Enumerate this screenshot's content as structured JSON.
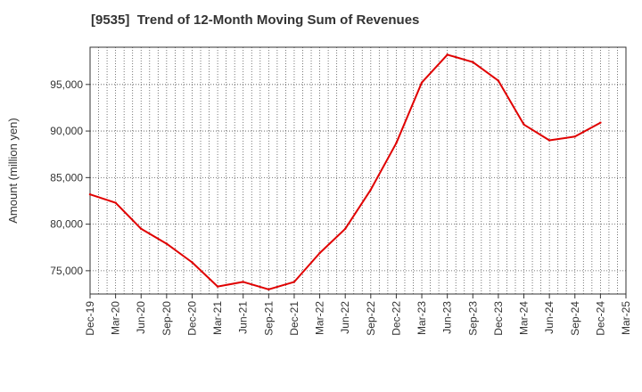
{
  "chart_data": {
    "type": "line",
    "title": "[9535]  Trend of 12-Month Moving Sum of Revenues",
    "xlabel": "",
    "ylabel": "Amount (million yen)",
    "categories": [
      "Dec-19",
      "Mar-20",
      "Jun-20",
      "Sep-20",
      "Dec-20",
      "Mar-21",
      "Jun-21",
      "Sep-21",
      "Dec-21",
      "Mar-22",
      "Jun-22",
      "Sep-22",
      "Dec-22",
      "Mar-23",
      "Jun-23",
      "Sep-23",
      "Dec-23",
      "Mar-24",
      "Jun-24",
      "Sep-24",
      "Dec-24",
      "Mar-25"
    ],
    "y_ticks": [
      75000,
      80000,
      85000,
      90000,
      95000
    ],
    "y_tick_labels": [
      "75,000",
      "80,000",
      "85,000",
      "90,000",
      "95,000"
    ],
    "ylim": [
      72500,
      99000
    ],
    "grid": true,
    "series": [
      {
        "color": "#e00000",
        "values": [
          83200,
          82300,
          79500,
          77900,
          75900,
          73300,
          73800,
          73000,
          73800,
          76900,
          79500,
          83700,
          88700,
          95200,
          98200,
          97400,
          95400,
          90700,
          89000,
          89400,
          90900,
          null
        ]
      }
    ]
  }
}
